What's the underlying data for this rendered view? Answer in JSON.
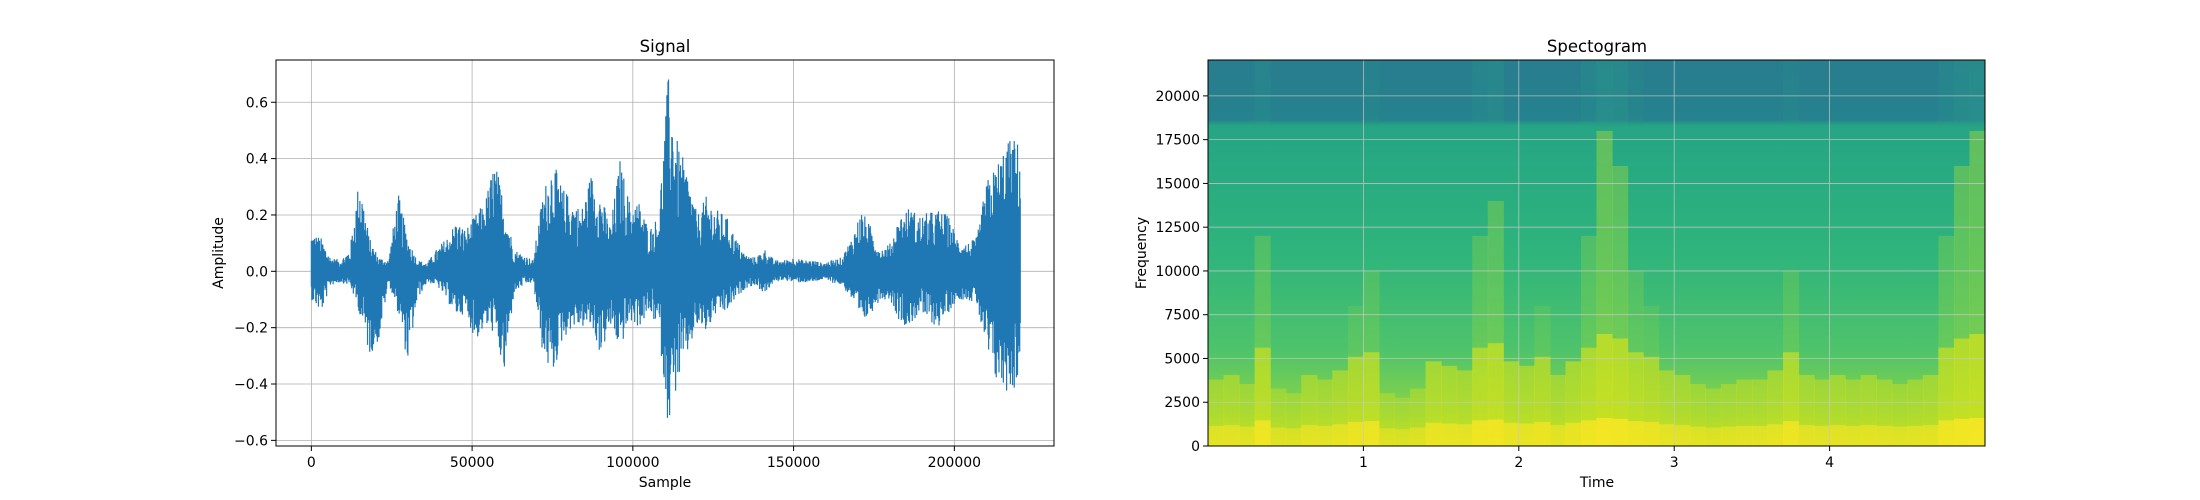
{
  "chart_data": [
    {
      "type": "line",
      "title": "Signal",
      "xlabel": "Sample",
      "ylabel": "Amplitude",
      "xlim": [
        -11000,
        231000
      ],
      "ylim": [
        -0.62,
        0.75
      ],
      "grid": true,
      "xticks": [
        0,
        50000,
        100000,
        150000,
        200000
      ],
      "xtick_labels": [
        "0",
        "50000",
        "100000",
        "150000",
        "200000"
      ],
      "yticks": [
        -0.6,
        -0.4,
        -0.2,
        0.0,
        0.2,
        0.4,
        0.6
      ],
      "ytick_labels": [
        "−0.6",
        "−0.4",
        "−0.2",
        "0.0",
        "0.2",
        "0.4",
        "0.6"
      ],
      "series": [
        {
          "color": "#1f77b4",
          "x": [
            0,
            3000,
            6000,
            9000,
            12000,
            15000,
            18000,
            21000,
            24000,
            27000,
            30000,
            33000,
            36000,
            39000,
            42000,
            45000,
            48000,
            51000,
            54000,
            57000,
            60000,
            63000,
            66000,
            69000,
            72000,
            75000,
            78000,
            81000,
            84000,
            87000,
            90000,
            93000,
            96000,
            99000,
            102000,
            105000,
            108000,
            111000,
            114000,
            117000,
            120000,
            123000,
            126000,
            129000,
            132000,
            135000,
            138000,
            141000,
            144000,
            147000,
            150000,
            153000,
            156000,
            159000,
            162000,
            165000,
            168000,
            171000,
            174000,
            177000,
            180000,
            183000,
            186000,
            189000,
            192000,
            195000,
            198000,
            201000,
            204000,
            207000,
            210000,
            213000,
            216000,
            219000,
            220500
          ],
          "y_max": [
            0.14,
            0.12,
            0.05,
            0.04,
            0.08,
            0.35,
            0.12,
            0.05,
            0.04,
            0.28,
            0.12,
            0.04,
            0.03,
            0.08,
            0.12,
            0.18,
            0.15,
            0.2,
            0.25,
            0.4,
            0.25,
            0.08,
            0.06,
            0.04,
            0.28,
            0.4,
            0.3,
            0.26,
            0.22,
            0.35,
            0.28,
            0.16,
            0.4,
            0.25,
            0.25,
            0.15,
            0.2,
            0.7,
            0.45,
            0.36,
            0.2,
            0.27,
            0.22,
            0.2,
            0.12,
            0.06,
            0.05,
            0.08,
            0.04,
            0.04,
            0.05,
            0.04,
            0.04,
            0.03,
            0.04,
            0.05,
            0.12,
            0.22,
            0.16,
            0.08,
            0.1,
            0.2,
            0.23,
            0.2,
            0.21,
            0.22,
            0.2,
            0.12,
            0.1,
            0.12,
            0.32,
            0.38,
            0.46,
            0.48,
            0.44
          ],
          "y_min": [
            -0.1,
            -0.15,
            -0.05,
            -0.04,
            -0.05,
            -0.15,
            -0.3,
            -0.25,
            -0.04,
            -0.15,
            -0.33,
            -0.1,
            -0.04,
            -0.05,
            -0.1,
            -0.16,
            -0.15,
            -0.25,
            -0.2,
            -0.22,
            -0.38,
            -0.08,
            -0.05,
            -0.04,
            -0.3,
            -0.38,
            -0.25,
            -0.2,
            -0.2,
            -0.2,
            -0.3,
            -0.2,
            -0.28,
            -0.18,
            -0.2,
            -0.15,
            -0.2,
            -0.55,
            -0.4,
            -0.3,
            -0.2,
            -0.22,
            -0.15,
            -0.15,
            -0.1,
            -0.06,
            -0.05,
            -0.08,
            -0.04,
            -0.03,
            -0.04,
            -0.04,
            -0.04,
            -0.03,
            -0.04,
            -0.05,
            -0.1,
            -0.2,
            -0.15,
            -0.1,
            -0.1,
            -0.18,
            -0.2,
            -0.15,
            -0.18,
            -0.2,
            -0.15,
            -0.1,
            -0.1,
            -0.12,
            -0.3,
            -0.4,
            -0.43,
            -0.42,
            -0.35
          ]
        }
      ]
    },
    {
      "type": "heatmap",
      "title": "Spectogram",
      "xlabel": "Time",
      "ylabel": "Frequency",
      "xlim": [
        0,
        5.0
      ],
      "ylim": [
        0,
        22050
      ],
      "grid": true,
      "colormap": "viridis",
      "xticks": [
        1,
        2,
        3,
        4
      ],
      "xtick_labels": [
        "1",
        "2",
        "3",
        "4"
      ],
      "yticks": [
        0,
        2500,
        5000,
        7500,
        10000,
        12500,
        15000,
        17500,
        20000
      ],
      "ytick_labels": [
        "0",
        "2500",
        "5000",
        "7500",
        "10000",
        "12500",
        "15000",
        "17500",
        "20000"
      ],
      "time_bins": [
        0.05,
        0.15,
        0.25,
        0.35,
        0.45,
        0.55,
        0.65,
        0.75,
        0.85,
        0.95,
        1.05,
        1.15,
        1.25,
        1.35,
        1.45,
        1.55,
        1.65,
        1.75,
        1.85,
        1.95,
        2.05,
        2.15,
        2.25,
        2.35,
        2.45,
        2.55,
        2.65,
        2.75,
        2.85,
        2.95,
        3.05,
        3.15,
        3.25,
        3.35,
        3.45,
        3.55,
        3.65,
        3.75,
        3.85,
        3.95,
        4.05,
        4.15,
        4.25,
        4.35,
        4.45,
        4.55,
        4.65,
        4.75,
        4.85,
        4.95
      ],
      "frame_energy": [
        0.5,
        0.55,
        0.45,
        0.85,
        0.4,
        0.35,
        0.55,
        0.5,
        0.6,
        0.75,
        0.8,
        0.35,
        0.3,
        0.4,
        0.7,
        0.65,
        0.6,
        0.85,
        0.9,
        0.7,
        0.65,
        0.75,
        0.55,
        0.7,
        0.85,
        1.0,
        0.95,
        0.8,
        0.75,
        0.6,
        0.55,
        0.45,
        0.4,
        0.45,
        0.5,
        0.5,
        0.6,
        0.8,
        0.55,
        0.5,
        0.55,
        0.5,
        0.55,
        0.5,
        0.45,
        0.5,
        0.55,
        0.85,
        0.95,
        1.0
      ],
      "high_band_cutoff_hz": 18600
    }
  ]
}
